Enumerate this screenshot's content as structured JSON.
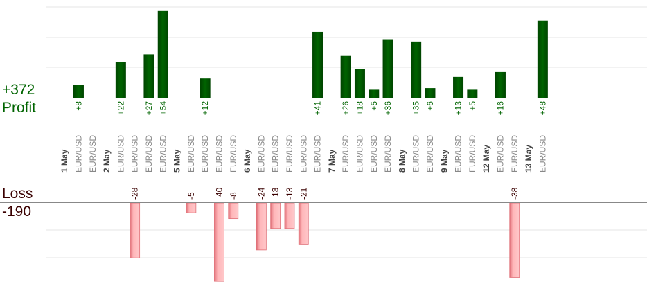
{
  "summary": {
    "profit_total": "+372",
    "profit_label": "Profit",
    "loss_label": "Loss",
    "loss_total": "-190"
  },
  "colors": {
    "profit_bar": "#006400",
    "profit_bar_dark": "#004400",
    "loss_bar": "#ffb6b9",
    "loss_bar_edge": "#e07078",
    "profit_text": "#006400",
    "loss_text": "#3a0000",
    "axis": "#888888",
    "grid": "#e6e6e6",
    "date_text": "#444444",
    "pair_text": "#888888"
  },
  "chart_data": {
    "type": "bar",
    "profit_axis_ylim": [
      0,
      60
    ],
    "loss_axis_ylim": [
      -42,
      0
    ],
    "grid": true,
    "items": [
      {
        "kind": "date",
        "label": "1 May"
      },
      {
        "kind": "trade",
        "label": "EUR/USD",
        "value": 8
      },
      {
        "kind": "trade",
        "label": "EUR/USD",
        "value": 0
      },
      {
        "kind": "date",
        "label": "2 May"
      },
      {
        "kind": "trade",
        "label": "EUR/USD",
        "value": 22
      },
      {
        "kind": "trade",
        "label": "EUR/USD",
        "value": -28
      },
      {
        "kind": "trade",
        "label": "EUR/USD",
        "value": 27
      },
      {
        "kind": "trade",
        "label": "EUR/USD",
        "value": 54
      },
      {
        "kind": "date",
        "label": "5 May"
      },
      {
        "kind": "trade",
        "label": "EUR/USD",
        "value": -5
      },
      {
        "kind": "trade",
        "label": "EUR/USD",
        "value": 12
      },
      {
        "kind": "trade",
        "label": "EUR/USD",
        "value": -40
      },
      {
        "kind": "trade",
        "label": "EUR/USD",
        "value": -8
      },
      {
        "kind": "date",
        "label": "6 May"
      },
      {
        "kind": "trade",
        "label": "EUR/USD",
        "value": -24
      },
      {
        "kind": "trade",
        "label": "EUR/USD",
        "value": -13
      },
      {
        "kind": "trade",
        "label": "EUR/USD",
        "value": -13
      },
      {
        "kind": "trade",
        "label": "EUR/USD",
        "value": -21
      },
      {
        "kind": "trade",
        "label": "EUR/USD",
        "value": 41
      },
      {
        "kind": "date",
        "label": "7 May"
      },
      {
        "kind": "trade",
        "label": "EUR/USD",
        "value": 26
      },
      {
        "kind": "trade",
        "label": "EUR/USD",
        "value": 18
      },
      {
        "kind": "trade",
        "label": "EUR/USD",
        "value": 5
      },
      {
        "kind": "trade",
        "label": "EUR/USD",
        "value": 36
      },
      {
        "kind": "date",
        "label": "8 May"
      },
      {
        "kind": "trade",
        "label": "EUR/USD",
        "value": 35
      },
      {
        "kind": "trade",
        "label": "EUR/USD",
        "value": 6
      },
      {
        "kind": "date",
        "label": "9 May"
      },
      {
        "kind": "trade",
        "label": "EUR/USD",
        "value": 13
      },
      {
        "kind": "trade",
        "label": "EUR/USD",
        "value": 5
      },
      {
        "kind": "date",
        "label": "12 May"
      },
      {
        "kind": "trade",
        "label": "EUR/USD",
        "value": 16
      },
      {
        "kind": "trade",
        "label": "EUR/USD",
        "value": -38
      },
      {
        "kind": "date",
        "label": "13 May"
      },
      {
        "kind": "trade",
        "label": "EUR/USD",
        "value": 48
      }
    ]
  }
}
